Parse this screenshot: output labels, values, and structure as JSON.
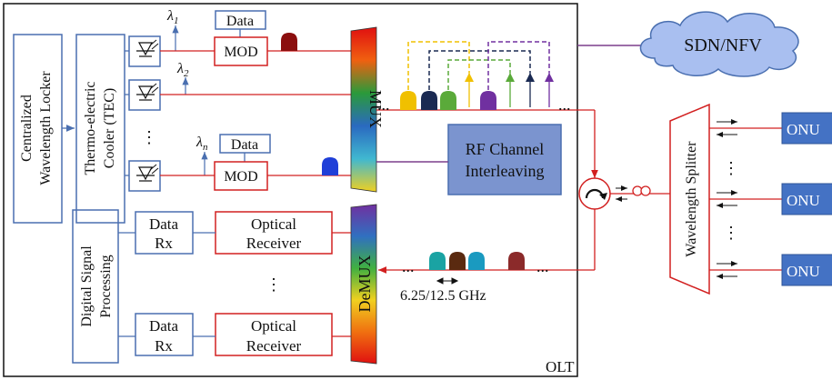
{
  "olt": {
    "label": "OLT",
    "locker": [
      "Centralized",
      "Wavelength Locker"
    ],
    "tec": [
      "Thermo-electric",
      "Cooler (TEC)"
    ],
    "lambda_1": "λ",
    "lambda_1_sub": "1",
    "lambda_2": "λ",
    "lambda_2_sub": "2",
    "lambda_n": "λ",
    "lambda_n_sub": "n",
    "laser_dots": "⋮",
    "data_top": "Data",
    "data_bottom": "Data",
    "mod_top": "MOD",
    "mod_bottom": "MOD",
    "mux": "MUX",
    "demux": "DeMUX",
    "rf_block": [
      "RF Channel",
      "Interleaving"
    ],
    "dsp": [
      "Digital Signal",
      "Processing"
    ],
    "data_rx_1": [
      "Data",
      "Rx"
    ],
    "data_rx_2": [
      "Data",
      "Rx"
    ],
    "optical_receiver_1": [
      "Optical",
      "Receiver"
    ],
    "optical_receiver_2": [
      "Optical",
      "Receiver"
    ],
    "receiver_dots": "⋮",
    "upper_ellipsis_left": "...",
    "upper_ellipsis_right": "...",
    "lower_ellipsis_left": "...",
    "lower_ellipsis_right": "...",
    "channel_spacing": "6.25/12.5 GHz"
  },
  "sdn": {
    "label": "SDN/NFV"
  },
  "splitter": {
    "label": "Wavelength Splitter",
    "dots_1": "⋮",
    "dots_2": "⋮"
  },
  "onus": [
    "ONU",
    "ONU",
    "ONU"
  ],
  "colors": {
    "red_line": "#d22020",
    "blue_box_border": "#4a6fb0",
    "rf_fill": "#7b94cf",
    "onu_fill": "#4472c4",
    "sdn_fill": "#a9bff0",
    "purple_line": "#7b3f8c"
  }
}
